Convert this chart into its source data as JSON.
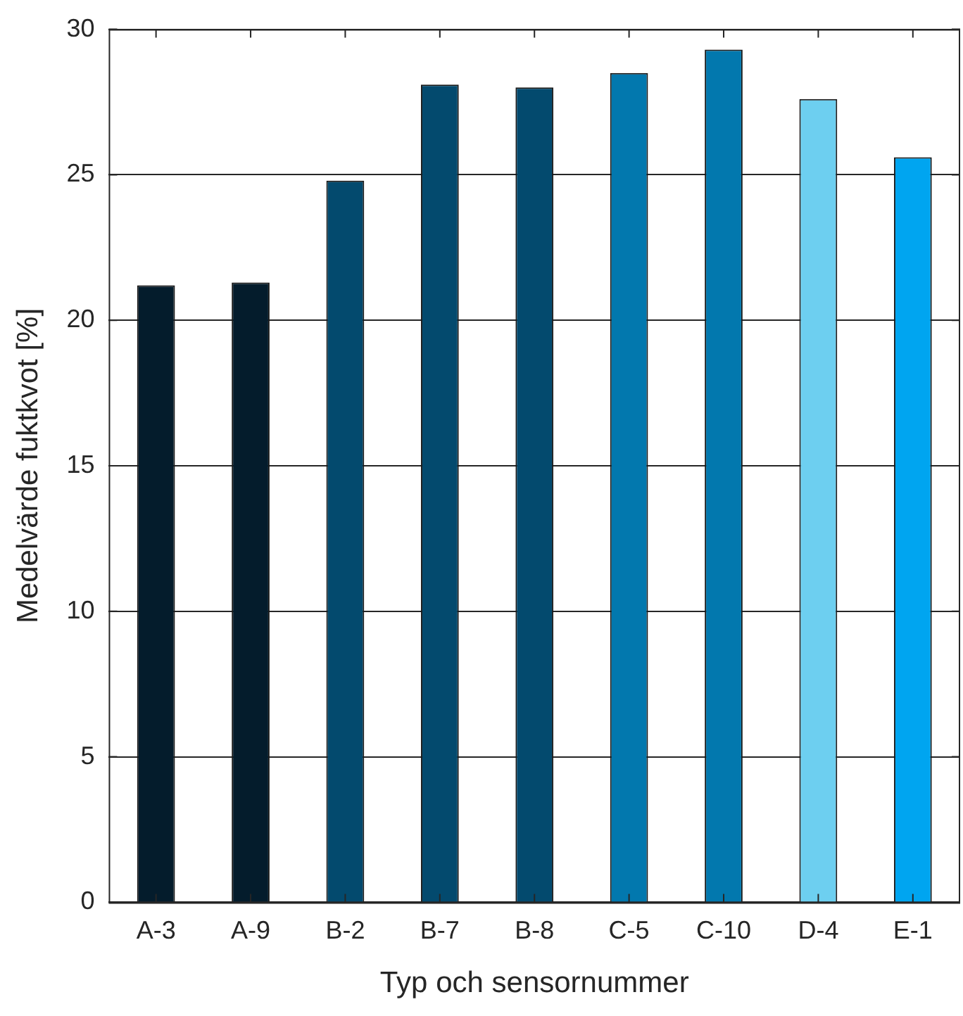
{
  "chart_data": {
    "type": "bar",
    "xlabel": "Typ och sensornummer",
    "ylabel": "Medelvärde fuktkvot [%]",
    "categories": [
      "A-3",
      "A-9",
      "B-2",
      "B-7",
      "B-8",
      "C-5",
      "C-10",
      "D-4",
      "E-1"
    ],
    "values": [
      21.2,
      21.3,
      24.8,
      28.1,
      28.0,
      28.5,
      29.3,
      27.6,
      25.6
    ],
    "colors": [
      "#041c2c",
      "#041c2c",
      "#034a6e",
      "#034a6e",
      "#034a6e",
      "#0278ae",
      "#0278ae",
      "#6dcff0",
      "#00a5f0"
    ],
    "ylim": [
      0,
      30
    ],
    "yticks": [
      0,
      5,
      10,
      15,
      20,
      25,
      30
    ],
    "grid": "y",
    "legend": false
  }
}
